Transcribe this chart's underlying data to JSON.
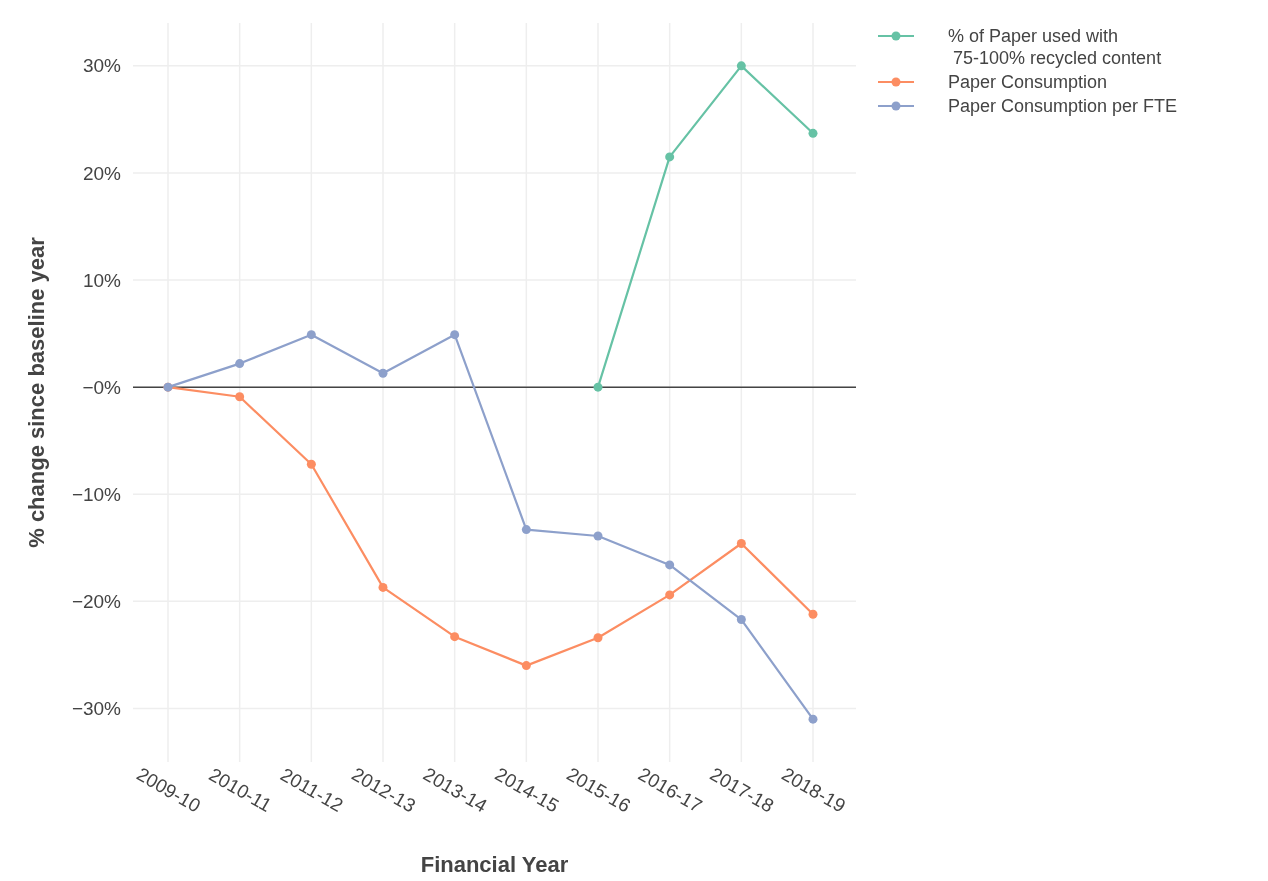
{
  "chart_data": {
    "type": "line",
    "xlabel": "Financial Year",
    "ylabel": "% change since baseline year",
    "categories": [
      "2009-10",
      "2010-11",
      "2011-12",
      "2012-13",
      "2013-14",
      "2014-15",
      "2015-16",
      "2016-17",
      "2017-18",
      "2018-19"
    ],
    "series": [
      {
        "name": "% of Paper used with\n 75-100% recycled content",
        "color": "#66c2a5",
        "values": [
          null,
          null,
          null,
          null,
          null,
          null,
          0,
          21.5,
          30,
          23.7
        ]
      },
      {
        "name": "Paper Consumption",
        "color": "#fc8d62",
        "values": [
          0,
          -0.9,
          -7.2,
          -18.7,
          -23.3,
          -26.0,
          -23.4,
          -19.4,
          -14.6,
          -21.2
        ]
      },
      {
        "name": "Paper Consumption per FTE",
        "color": "#8da0cb",
        "values": [
          0,
          2.2,
          4.9,
          1.3,
          4.9,
          -13.3,
          -13.9,
          -16.6,
          -21.7,
          -31.0
        ]
      }
    ],
    "ylim": [
      -35,
      34
    ],
    "yticks": [
      {
        "value": -30,
        "label": "−30%"
      },
      {
        "value": -20,
        "label": "−20%"
      },
      {
        "value": -10,
        "label": "−10%"
      },
      {
        "value": 0,
        "label": "−0%"
      },
      {
        "value": 10,
        "label": "10%"
      },
      {
        "value": 20,
        "label": "20%"
      },
      {
        "value": 30,
        "label": "30%"
      }
    ],
    "ref_lines": [
      {
        "axis": "y",
        "value": 0,
        "color": "#444444"
      }
    ],
    "grid": true,
    "legend": "top right",
    "marker": "circle",
    "line_style": "solid"
  }
}
